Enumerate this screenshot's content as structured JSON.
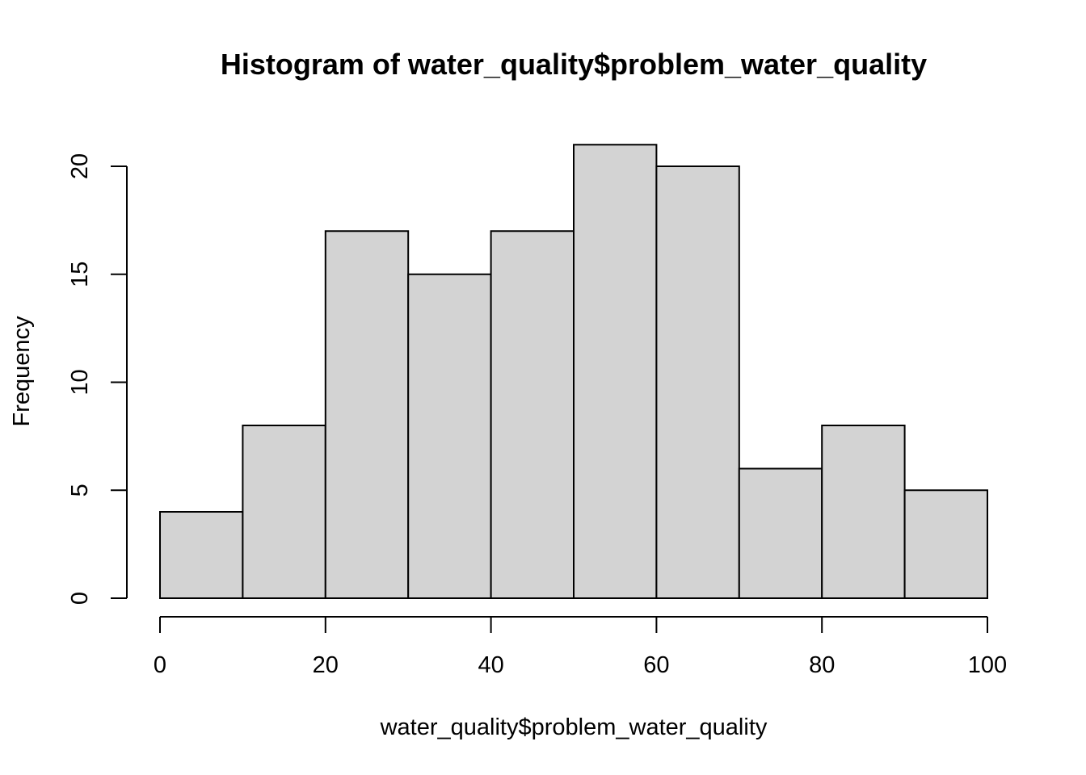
{
  "chart_data": {
    "type": "bar",
    "title": "Histogram of water_quality$problem_water_quality",
    "xlabel": "water_quality$problem_water_quality",
    "ylabel": "Frequency",
    "bins": [
      {
        "start": 0,
        "end": 10,
        "count": 4
      },
      {
        "start": 10,
        "end": 20,
        "count": 8
      },
      {
        "start": 20,
        "end": 30,
        "count": 17
      },
      {
        "start": 30,
        "end": 40,
        "count": 15
      },
      {
        "start": 40,
        "end": 50,
        "count": 17
      },
      {
        "start": 50,
        "end": 60,
        "count": 21
      },
      {
        "start": 60,
        "end": 70,
        "count": 20
      },
      {
        "start": 70,
        "end": 80,
        "count": 6
      },
      {
        "start": 80,
        "end": 90,
        "count": 8
      },
      {
        "start": 90,
        "end": 100,
        "count": 5
      }
    ],
    "xlim": [
      0,
      100
    ],
    "ylim": [
      0,
      21
    ],
    "x_ticks": [
      0,
      20,
      40,
      60,
      80,
      100
    ],
    "y_ticks": [
      0,
      5,
      10,
      15,
      20
    ],
    "grid": false,
    "bar_color": "#d3d3d3",
    "edge_color": "#000000"
  }
}
